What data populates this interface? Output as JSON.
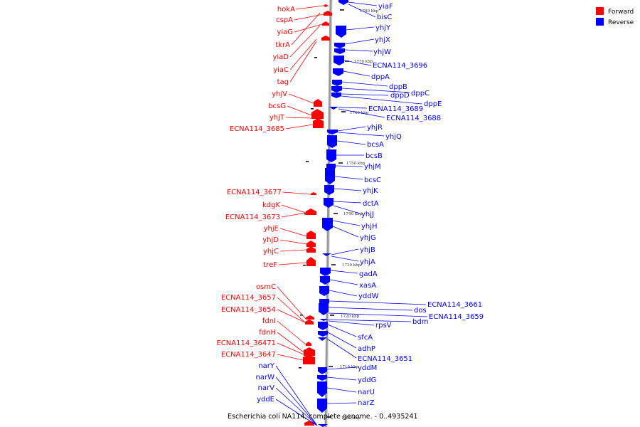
{
  "caption": "Escherichia coli NA114, complete genome. - 0..4935241",
  "legend": [
    {
      "label": "Forward",
      "color": "#ff0000"
    },
    {
      "label": "Reverse",
      "color": "#0000ff"
    }
  ],
  "colors": {
    "forward": "#ff0000",
    "reverse": "#0000ff",
    "backbone": "#999999"
  },
  "ticks": [
    "1780 kbp",
    "1770 kbp",
    "1760 kbp",
    "1750 kbp",
    "1740 kbp",
    "1730 kbp",
    "1720 kbp",
    "1710 kbp",
    "1700 kbp"
  ],
  "forward_labels": [
    "hokA",
    "cspA",
    "yiaG",
    "tkrA",
    "yiaD",
    "yiaC",
    "tag",
    "yhjV",
    "bcsG",
    "yhjT",
    "ECNA114_3685",
    "ECNA114_3677",
    "kdgK",
    "ECNA114_3673",
    "yhjE",
    "yhjD",
    "yhjC",
    "treF",
    "osmC",
    "ECNA114_3657",
    "ECNA114_3654",
    "fdnI",
    "fdnH",
    "ECNA114_36471",
    "ECNA114_3647"
  ],
  "reverse_labels_left": [
    "narY",
    "narW",
    "narV",
    "yddE"
  ],
  "reverse_labels": [
    "yiaF",
    "bisC",
    "yhjY",
    "yhjX",
    "yhjW",
    "ECNA114_3696",
    "dppA",
    "dppB",
    "dppC",
    "dppD",
    "dppE",
    "ECNA114_3689",
    "ECNA114_3688",
    "yhjR",
    "yhjQ",
    "bcsA",
    "bcsB",
    "yhjM",
    "bcsC",
    "yhjK",
    "dctA",
    "yhjJ",
    "yhjH",
    "yhjG",
    "yhjB",
    "yhjA",
    "gadA",
    "xasA",
    "yddW",
    "ECNA114_3661",
    "dos",
    "ECNA114_3659",
    "bdm",
    "rpsV",
    "sfcA",
    "adhP",
    "ECNA114_3651",
    "yddM",
    "yddG",
    "narU",
    "narZ"
  ]
}
